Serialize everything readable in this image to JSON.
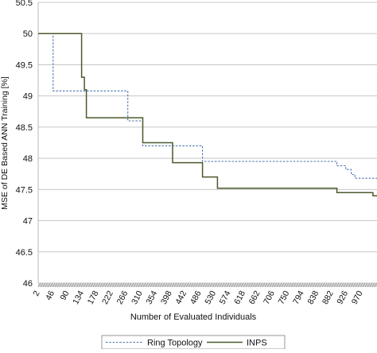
{
  "chart_data": {
    "type": "line",
    "step": true,
    "title": "",
    "xlabel": "Number of Evaluated Individuals",
    "ylabel": "MSE of DE Based ANN Training [%]",
    "xlim": [
      2,
      1000
    ],
    "ylim": [
      46,
      50.5
    ],
    "x_tick_labels": [
      "2",
      "46",
      "90",
      "134",
      "178",
      "222",
      "266",
      "310",
      "354",
      "398",
      "442",
      "486",
      "530",
      "574",
      "618",
      "662",
      "706",
      "750",
      "794",
      "838",
      "882",
      "926",
      "970"
    ],
    "y_ticks": [
      46,
      46.5,
      47,
      47.5,
      48,
      48.5,
      49,
      49.5,
      50,
      50.5
    ],
    "grid": "horizontal",
    "legend_position": "bottom-center",
    "series": [
      {
        "name": "Ring Topology",
        "color": "#4a72b0",
        "dash": "dashed",
        "x": [
          2,
          46,
          46,
          266,
          266,
          310,
          310,
          486,
          486,
          882,
          882,
          908,
          908,
          924,
          924,
          935,
          935,
          1000
        ],
        "y": [
          50,
          50,
          49.08,
          49.08,
          48.6,
          48.6,
          48.2,
          48.2,
          47.95,
          47.95,
          47.88,
          47.88,
          47.82,
          47.82,
          47.74,
          47.74,
          47.68,
          47.68
        ]
      },
      {
        "name": "INPS",
        "color": "#4b5a2c",
        "dash": "solid",
        "x": [
          2,
          130,
          130,
          138,
          138,
          144,
          144,
          310,
          310,
          398,
          398,
          486,
          486,
          530,
          530,
          882,
          882,
          988,
          988,
          1000
        ],
        "y": [
          50,
          50,
          49.3,
          49.3,
          49.1,
          49.1,
          48.65,
          48.65,
          48.25,
          48.25,
          47.93,
          47.93,
          47.7,
          47.7,
          47.52,
          47.52,
          47.45,
          47.45,
          47.4,
          47.4
        ]
      }
    ]
  }
}
